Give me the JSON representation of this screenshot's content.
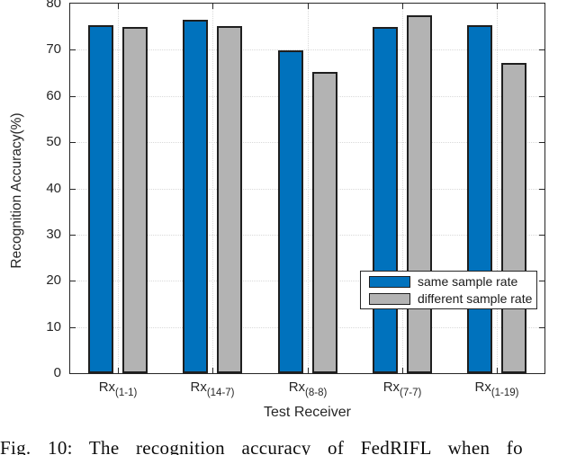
{
  "figure": {
    "caption": "Fig. 10: The recognition accuracy of FedRIFL when fo"
  },
  "chart_data": {
    "type": "bar",
    "title": "",
    "xlabel": "Test Receiver",
    "ylabel": "Recognition Accuracy(%)",
    "ylim": [
      0,
      80
    ],
    "yticks": [
      0,
      10,
      20,
      30,
      40,
      50,
      60,
      70,
      80
    ],
    "grid": true,
    "legend_position": "inside-lower-right",
    "categories": [
      {
        "base": "Rx",
        "sub": "(1-1)"
      },
      {
        "base": "Rx",
        "sub": "(14-7)"
      },
      {
        "base": "Rx",
        "sub": "(8-8)"
      },
      {
        "base": "Rx",
        "sub": "(7-7)"
      },
      {
        "base": "Rx",
        "sub": "(1-19)"
      }
    ],
    "series": [
      {
        "name": "same sample rate",
        "color": "#0072BD",
        "values": [
          75.3,
          76.4,
          69.9,
          75.0,
          75.3
        ]
      },
      {
        "name": "different sample rate",
        "color": "#B3B3B3",
        "values": [
          74.9,
          75.1,
          65.2,
          77.4,
          67.1
        ]
      }
    ]
  },
  "colors": {
    "axis": "#262626",
    "grid": "#d9d9d9",
    "bar_edge": "#1f1f1f",
    "background": "#ffffff"
  }
}
